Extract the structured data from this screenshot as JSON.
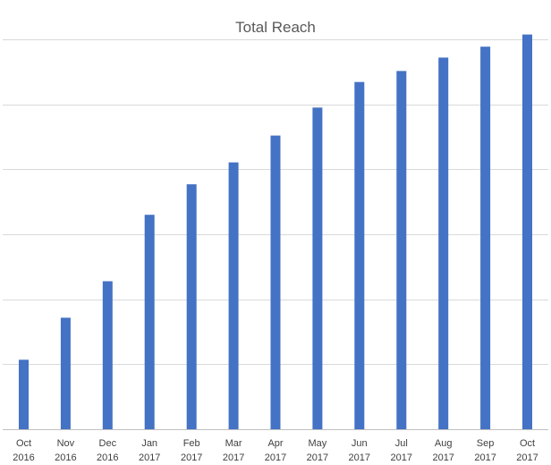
{
  "chart_data": {
    "type": "bar",
    "title": "Total Reach",
    "xlabel": "",
    "ylabel": "",
    "categories": [
      [
        "Oct",
        "2016"
      ],
      [
        "Nov",
        "2016"
      ],
      [
        "Dec",
        "2016"
      ],
      [
        "Jan",
        "2017"
      ],
      [
        "Feb",
        "2017"
      ],
      [
        "Mar",
        "2017"
      ],
      [
        "Apr",
        "2017"
      ],
      [
        "May",
        "2017"
      ],
      [
        "Jun",
        "2017"
      ],
      [
        "Jul",
        "2017"
      ],
      [
        "Aug",
        "2017"
      ],
      [
        "Sep",
        "2017"
      ],
      [
        "Oct",
        "2017"
      ]
    ],
    "values": [
      1.14,
      1.83,
      2.43,
      3.52,
      4.02,
      4.38,
      4.82,
      5.28,
      5.7,
      5.88,
      6.1,
      6.28,
      6.48
    ],
    "ylim": [
      0,
      6.4
    ],
    "y_gridlines": 6,
    "y_tick_labels_visible": false,
    "legend": "none",
    "grid": true,
    "colors": {
      "bar": "#4472c4",
      "grid": "#d9d9d9",
      "axis": "#bfbfbf",
      "title": "#595959",
      "label": "#404040"
    }
  }
}
